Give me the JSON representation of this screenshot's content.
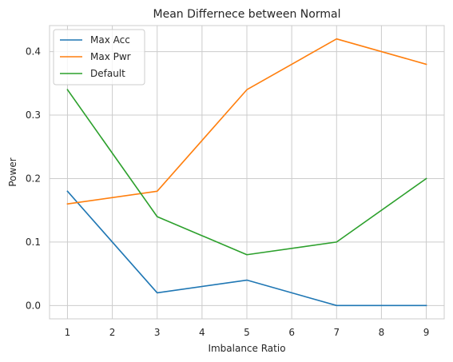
{
  "chart_data": {
    "type": "line",
    "title": "Mean Differnece between Normal",
    "xlabel": "Imbalance Ratio",
    "ylabel": "Power",
    "x": [
      1,
      3,
      5,
      7,
      9
    ],
    "xticks": [
      "1",
      "2",
      "3",
      "4",
      "5",
      "6",
      "7",
      "8",
      "9"
    ],
    "yticks": [
      "0.0",
      "0.1",
      "0.2",
      "0.3",
      "0.4"
    ],
    "xlim": [
      0.6,
      9.4
    ],
    "ylim": [
      -0.021,
      0.441
    ],
    "grid": true,
    "legend_position": "top-left",
    "series": [
      {
        "name": "Max Acc",
        "color": "#1f77b4",
        "values": [
          0.18,
          0.02,
          0.04,
          0.0,
          0.0
        ]
      },
      {
        "name": "Max Pwr",
        "color": "#ff7f0e",
        "values": [
          0.16,
          0.18,
          0.34,
          0.42,
          0.38
        ]
      },
      {
        "name": "Default",
        "color": "#2ca02c",
        "values": [
          0.34,
          0.14,
          0.08,
          0.1,
          0.2
        ]
      }
    ]
  }
}
